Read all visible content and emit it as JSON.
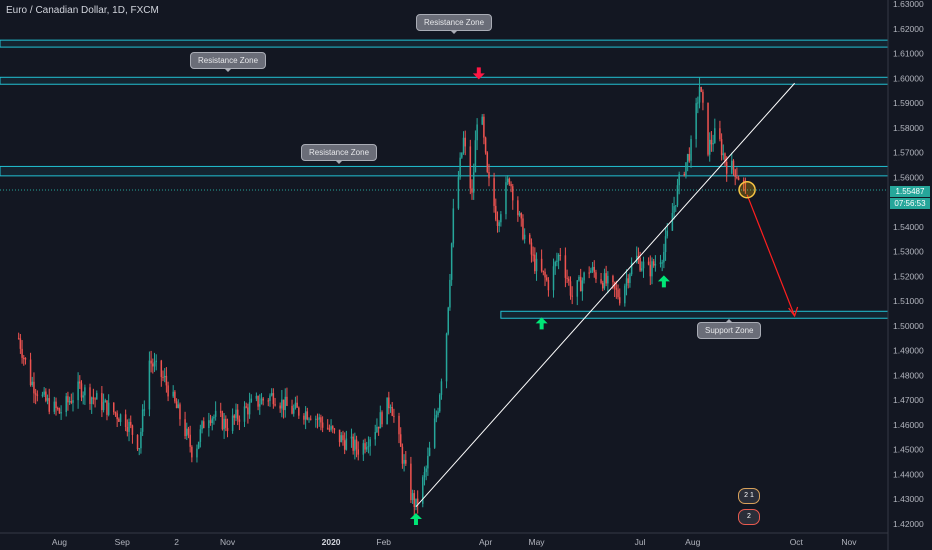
{
  "symbol": {
    "title": "Euro / Canadian Dollar, 1D, FXCM"
  },
  "price_tags": {
    "last": "1.55487",
    "countdown": "07:56:53"
  },
  "colors": {
    "background": "#131722",
    "up": "#26a69a",
    "down": "#ef5350",
    "zone": "#22c1d3",
    "trend": "#ffffff",
    "arrow_up": "#00e676",
    "arrow_down": "#ff1744",
    "projection": "#ff1f1f"
  },
  "annotations": {
    "resistance_top": "Resistance Zone",
    "resistance_left": "Resistance Zone",
    "resistance_mid": "Resistance Zone",
    "support": "Support Zone"
  },
  "badges": {
    "ideas": "2 1",
    "alerts": "2"
  },
  "chart_data": {
    "type": "candlestick",
    "title": "Euro / Canadian Dollar, 1D, FXCM",
    "ylim": [
      1.42,
      1.63
    ],
    "y_ticks": [
      "1.63000",
      "1.62000",
      "1.61000",
      "1.60000",
      "1.59000",
      "1.58000",
      "1.57000",
      "1.56000",
      "1.55000",
      "1.54000",
      "1.53000",
      "1.52000",
      "1.51000",
      "1.50000",
      "1.49000",
      "1.48000",
      "1.47000",
      "1.46000",
      "1.45000",
      "1.44000",
      "1.43000",
      "1.42000"
    ],
    "x_ticks": [
      "Aug",
      "Sep",
      "2",
      "Nov",
      "2020",
      "Feb",
      "Apr",
      "May",
      "Jul",
      "Aug",
      "Oct",
      "Nov"
    ],
    "grid": false,
    "anchors": [
      [
        "2019-07-01",
        1.495
      ],
      [
        "2019-07-08",
        1.478
      ],
      [
        "2019-07-16",
        1.47
      ],
      [
        "2019-07-25",
        1.465
      ],
      [
        "2019-08-06",
        1.475
      ],
      [
        "2019-08-20",
        1.468
      ],
      [
        "2019-09-02",
        1.462
      ],
      [
        "2019-09-10",
        1.452
      ],
      [
        "2019-09-16",
        1.486
      ],
      [
        "2019-09-25",
        1.478
      ],
      [
        "2019-10-03",
        1.465
      ],
      [
        "2019-10-12",
        1.448
      ],
      [
        "2019-10-20",
        1.465
      ],
      [
        "2019-11-01",
        1.46
      ],
      [
        "2019-11-15",
        1.468
      ],
      [
        "2019-11-28",
        1.472
      ],
      [
        "2019-12-08",
        1.466
      ],
      [
        "2019-12-20",
        1.465
      ],
      [
        "2020-01-05",
        1.455
      ],
      [
        "2020-01-18",
        1.45
      ],
      [
        "2020-01-28",
        1.46
      ],
      [
        "2020-02-05",
        1.47
      ],
      [
        "2020-02-10",
        1.453
      ],
      [
        "2020-02-17",
        1.432
      ],
      [
        "2020-02-20",
        1.427
      ],
      [
        "2020-02-26",
        1.442
      ],
      [
        "2020-03-04",
        1.468
      ],
      [
        "2020-03-09",
        1.498
      ],
      [
        "2020-03-13",
        1.545
      ],
      [
        "2020-03-19",
        1.575
      ],
      [
        "2020-03-24",
        1.552
      ],
      [
        "2020-03-28",
        1.595
      ],
      [
        "2020-04-02",
        1.56
      ],
      [
        "2020-04-08",
        1.543
      ],
      [
        "2020-04-15",
        1.56
      ],
      [
        "2020-04-22",
        1.54
      ],
      [
        "2020-04-30",
        1.525
      ],
      [
        "2020-05-08",
        1.517
      ],
      [
        "2020-05-15",
        1.53
      ],
      [
        "2020-05-22",
        1.512
      ],
      [
        "2020-06-01",
        1.523
      ],
      [
        "2020-06-10",
        1.518
      ],
      [
        "2020-06-19",
        1.512
      ],
      [
        "2020-06-28",
        1.528
      ],
      [
        "2020-07-06",
        1.522
      ],
      [
        "2020-07-15",
        1.53
      ],
      [
        "2020-07-24",
        1.558
      ],
      [
        "2020-07-31",
        1.572
      ],
      [
        "2020-08-05",
        1.597
      ],
      [
        "2020-08-10",
        1.572
      ],
      [
        "2020-08-15",
        1.578
      ],
      [
        "2020-08-21",
        1.565
      ],
      [
        "2020-08-26",
        1.563
      ],
      [
        "2020-09-01",
        1.555
      ]
    ],
    "zones": [
      {
        "label": "Resistance Zone",
        "low": 1.613,
        "high": 1.615
      },
      {
        "label": "Resistance Zone",
        "low": 1.598,
        "high": 1.6
      },
      {
        "label": "Resistance Zone",
        "low": 1.561,
        "high": 1.564
      },
      {
        "label": "Support Zone",
        "low": 1.5035,
        "high": 1.5055
      }
    ],
    "last_price": 1.55487,
    "trendline": {
      "from": [
        "2020-02-20",
        1.427
      ],
      "to": [
        "2020-09-30",
        1.598
      ]
    },
    "projection": {
      "from": [
        "2020-09-02",
        1.553
      ],
      "to": [
        "2020-09-30",
        1.504
      ]
    },
    "markers": [
      {
        "type": "down",
        "date": "2020-03-28",
        "price": 1.602
      },
      {
        "type": "up",
        "date": "2020-02-20",
        "price": 1.422
      },
      {
        "type": "up",
        "date": "2020-05-04",
        "price": 1.501
      },
      {
        "type": "up",
        "date": "2020-07-15",
        "price": 1.518
      }
    ],
    "highlight": {
      "date": "2020-09-02",
      "price": 1.555
    }
  }
}
